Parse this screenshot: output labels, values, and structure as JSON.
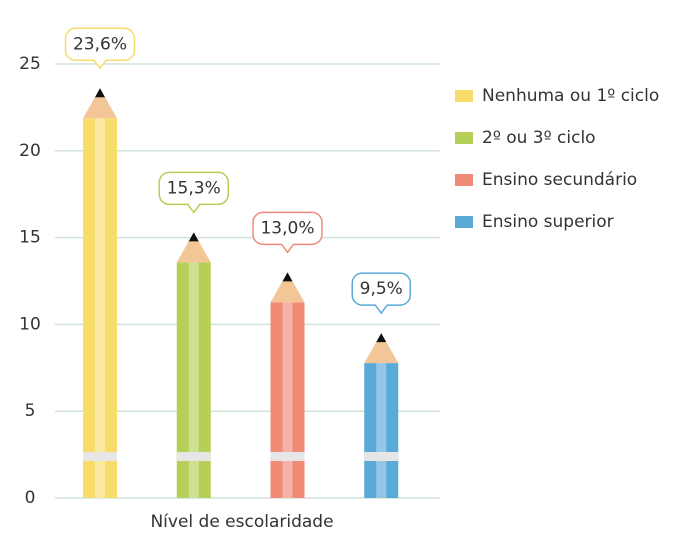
{
  "chart_data": {
    "type": "pencil-bar",
    "x_label": "Nível de escolaridade",
    "series": [
      {
        "name": "Nenhuma ou 1º ciclo",
        "color": "#f7dc6a",
        "values": [
          23.6
        ],
        "value_labels": [
          "23,6%"
        ]
      },
      {
        "name": "2º ou 3º ciclo",
        "color": "#b6cf58",
        "values": [
          15.3
        ],
        "value_labels": [
          "15,3%"
        ]
      },
      {
        "name": "Ensino secundário",
        "color": "#ef8b77",
        "values": [
          13.0
        ],
        "value_labels": [
          "13,0%"
        ]
      },
      {
        "name": "Ensino superior",
        "color": "#5aaad8",
        "values": [
          9.5
        ],
        "value_labels": [
          "9,5%"
        ]
      }
    ],
    "ylim": [
      0,
      25
    ],
    "yticks": [
      0,
      5,
      10,
      15,
      20,
      25
    ],
    "grid": true
  }
}
